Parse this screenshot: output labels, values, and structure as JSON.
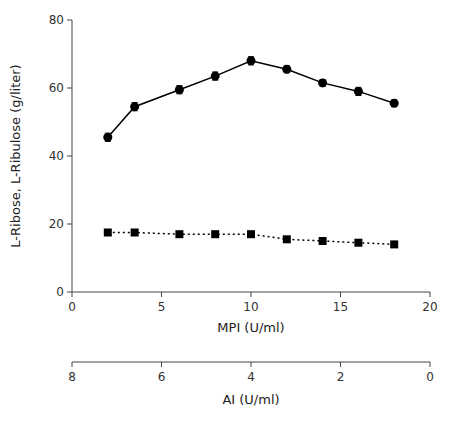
{
  "chart_data": {
    "type": "line",
    "x": [
      2,
      3.5,
      6,
      8,
      10,
      12,
      14,
      16,
      18
    ],
    "xlabel": "MPI (U/ml)",
    "ylabel": "L-Ribose, L-Ribulose (g/liter)",
    "x2label": "AI (U/ml)",
    "xlim": [
      0,
      20
    ],
    "xticks": [
      0,
      5,
      10,
      15,
      20
    ],
    "ylim": [
      0,
      80
    ],
    "yticks": [
      0,
      20,
      40,
      60,
      80
    ],
    "x2lim": [
      8,
      0
    ],
    "x2ticks": [
      8,
      6,
      4,
      2,
      0
    ],
    "grid": false,
    "series": [
      {
        "color": "#000000",
        "marker": "circle",
        "line_style": "solid",
        "values": [
          45.5,
          54.5,
          59.5,
          63.5,
          68.0,
          65.5,
          61.5,
          59.0,
          55.5
        ],
        "errors": [
          1.2,
          1.2,
          1.2,
          1.2,
          1.2,
          1.0,
          1.0,
          1.2,
          1.0
        ]
      },
      {
        "color": "#000000",
        "marker": "square",
        "line_style": "dotted",
        "values": [
          17.5,
          17.5,
          17.0,
          17.0,
          17.0,
          15.5,
          15.0,
          14.5,
          14.0
        ],
        "errors": [
          0.5,
          0.5,
          0.5,
          0.5,
          0.5,
          0.5,
          0.5,
          0.5,
          0.5
        ]
      }
    ]
  }
}
